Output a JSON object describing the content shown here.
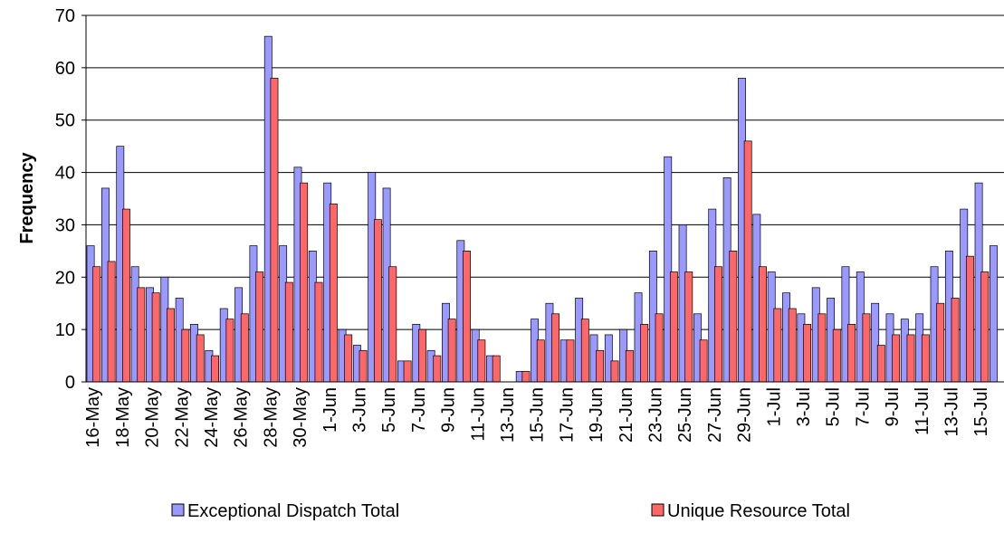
{
  "chart_data": {
    "type": "bar",
    "y_label": "Frequency",
    "categories": [
      "16-May",
      null,
      "18-May",
      null,
      "20-May",
      null,
      "22-May",
      null,
      "24-May",
      null,
      "26-May",
      null,
      "28-May",
      null,
      "30-May",
      null,
      "1-Jun",
      null,
      "3-Jun",
      null,
      "5-Jun",
      null,
      "7-Jun",
      null,
      "9-Jun",
      null,
      "11-Jun",
      null,
      "13-Jun",
      null,
      "15-Jun",
      null,
      "17-Jun",
      null,
      "19-Jun",
      null,
      "21-Jun",
      null,
      "23-Jun",
      null,
      "25-Jun",
      null,
      "27-Jun",
      null,
      "29-Jun",
      null,
      "1-Jul",
      null,
      "3-Jul",
      null,
      "5-Jul",
      null,
      "7-Jul",
      null,
      "9-Jul",
      null,
      "11-Jul",
      null,
      "13-Jul",
      null,
      "15-Jul",
      null
    ],
    "series": [
      {
        "name": "Exceptional Dispatch Total",
        "color": "#9999ff",
        "values": [
          26,
          37,
          45,
          22,
          18,
          20,
          16,
          11,
          6,
          14,
          18,
          26,
          66,
          26,
          41,
          25,
          38,
          10,
          7,
          40,
          37,
          4,
          11,
          6,
          15,
          27,
          10,
          5,
          0,
          2,
          12,
          15,
          8,
          16,
          9,
          9,
          10,
          17,
          25,
          43,
          30,
          13,
          33,
          39,
          58,
          32,
          21,
          17,
          13,
          18,
          16,
          22,
          21,
          15,
          13,
          12,
          13,
          22,
          25,
          33,
          38,
          26
        ]
      },
      {
        "name": "Unique Resource Total",
        "color": "#ff6666",
        "values": [
          22,
          23,
          33,
          18,
          17,
          14,
          10,
          9,
          5,
          12,
          13,
          21,
          58,
          19,
          38,
          19,
          34,
          9,
          6,
          31,
          22,
          4,
          10,
          5,
          12,
          25,
          8,
          5,
          0,
          2,
          8,
          13,
          8,
          12,
          6,
          4,
          6,
          11,
          13,
          21,
          21,
          8,
          22,
          25,
          46,
          22,
          14,
          14,
          11,
          13,
          10,
          11,
          13,
          7,
          9,
          9,
          9,
          15,
          16,
          24,
          21,
          null
        ]
      }
    ],
    "ylim": [
      0,
      70
    ],
    "yticks": [
      0,
      10,
      20,
      30,
      40,
      50,
      60,
      70
    ],
    "grid": true
  }
}
